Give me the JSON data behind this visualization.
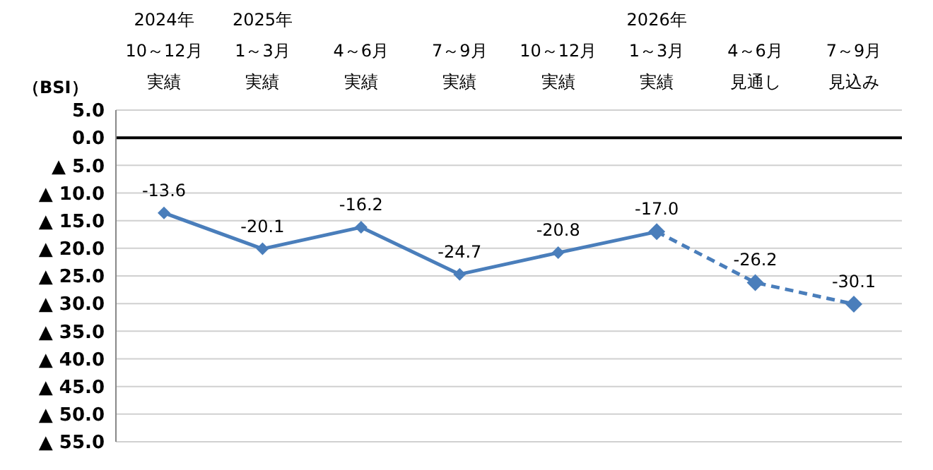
{
  "chart_data": {
    "type": "line",
    "ylabel": "（BSI）",
    "categories": [
      "2024年10～12月実績",
      "2025年1～3月実績",
      "4～6月実績",
      "7～9月実績",
      "10～12月実績",
      "2026年1～3月実績",
      "4～6月見通し",
      "7～9月見込み"
    ],
    "series": [
      {
        "color": "#4a7ebb",
        "line_style": "solid",
        "values": [
          -13.6,
          -20.1,
          -16.2,
          -24.7,
          -20.8,
          -17.0,
          null,
          null
        ],
        "value_labels": [
          "-13.6",
          "-20.1",
          "-16.2",
          "-24.7",
          "-20.8",
          "-17.0",
          null,
          null
        ]
      },
      {
        "color": "#4a7ebb",
        "line_style": "dashed",
        "values": [
          null,
          null,
          null,
          null,
          null,
          -17.0,
          -26.2,
          -30.1
        ],
        "value_labels": [
          null,
          null,
          null,
          null,
          null,
          null,
          "-26.2",
          "-30.1"
        ]
      }
    ],
    "ylim": [
      -55,
      5
    ],
    "yticks": [
      {
        "value": 5,
        "label": "5.0"
      },
      {
        "value": 0,
        "label": "0.0"
      },
      {
        "value": -5,
        "label": "▲ 5.0"
      },
      {
        "value": -10,
        "label": "▲ 10.0"
      },
      {
        "value": -15,
        "label": "▲ 15.0"
      },
      {
        "value": -20,
        "label": "▲ 20.0"
      },
      {
        "value": -25,
        "label": "▲ 25.0"
      },
      {
        "value": -30,
        "label": "▲ 30.0"
      },
      {
        "value": -35,
        "label": "▲ 35.0"
      },
      {
        "value": -40,
        "label": "▲ 40.0"
      },
      {
        "value": -45,
        "label": "▲ 45.0"
      },
      {
        "value": -50,
        "label": "▲ 50.0"
      },
      {
        "value": -55,
        "label": "▲ 55.0"
      }
    ],
    "grid": "y",
    "marker": "diamond",
    "ref_lines": [
      {
        "axis": "y",
        "value": 0,
        "color": "#000000"
      }
    ]
  }
}
